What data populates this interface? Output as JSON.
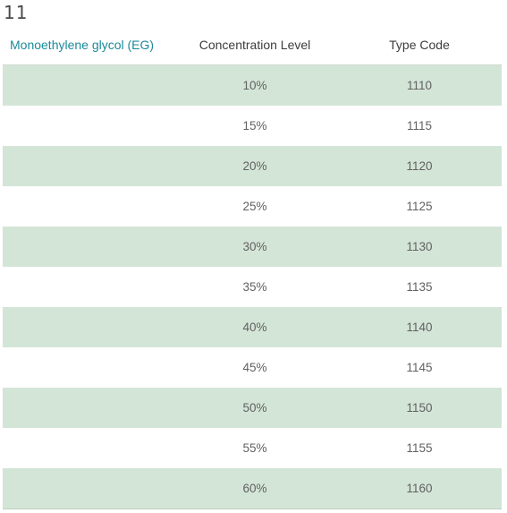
{
  "page": {
    "top_number": "11"
  },
  "table": {
    "headers": [
      "Monoethylene glycol (EG)",
      "Concentration Level",
      "Type Code"
    ],
    "rows": [
      {
        "material": "",
        "concentration": "10%",
        "type_code": "1110"
      },
      {
        "material": "",
        "concentration": "15%",
        "type_code": "1115"
      },
      {
        "material": "",
        "concentration": "20%",
        "type_code": "1120"
      },
      {
        "material": "",
        "concentration": "25%",
        "type_code": "1125"
      },
      {
        "material": "",
        "concentration": "30%",
        "type_code": "1130"
      },
      {
        "material": "",
        "concentration": "35%",
        "type_code": "1135"
      },
      {
        "material": "",
        "concentration": "40%",
        "type_code": "1140"
      },
      {
        "material": "",
        "concentration": "45%",
        "type_code": "1145"
      },
      {
        "material": "",
        "concentration": "50%",
        "type_code": "1150"
      },
      {
        "material": "",
        "concentration": "55%",
        "type_code": "1155"
      },
      {
        "material": "",
        "concentration": "60%",
        "type_code": "1160"
      }
    ],
    "colors": {
      "row_stripe": "#d3e5d7",
      "header_accent": "#1a8a9a"
    }
  }
}
